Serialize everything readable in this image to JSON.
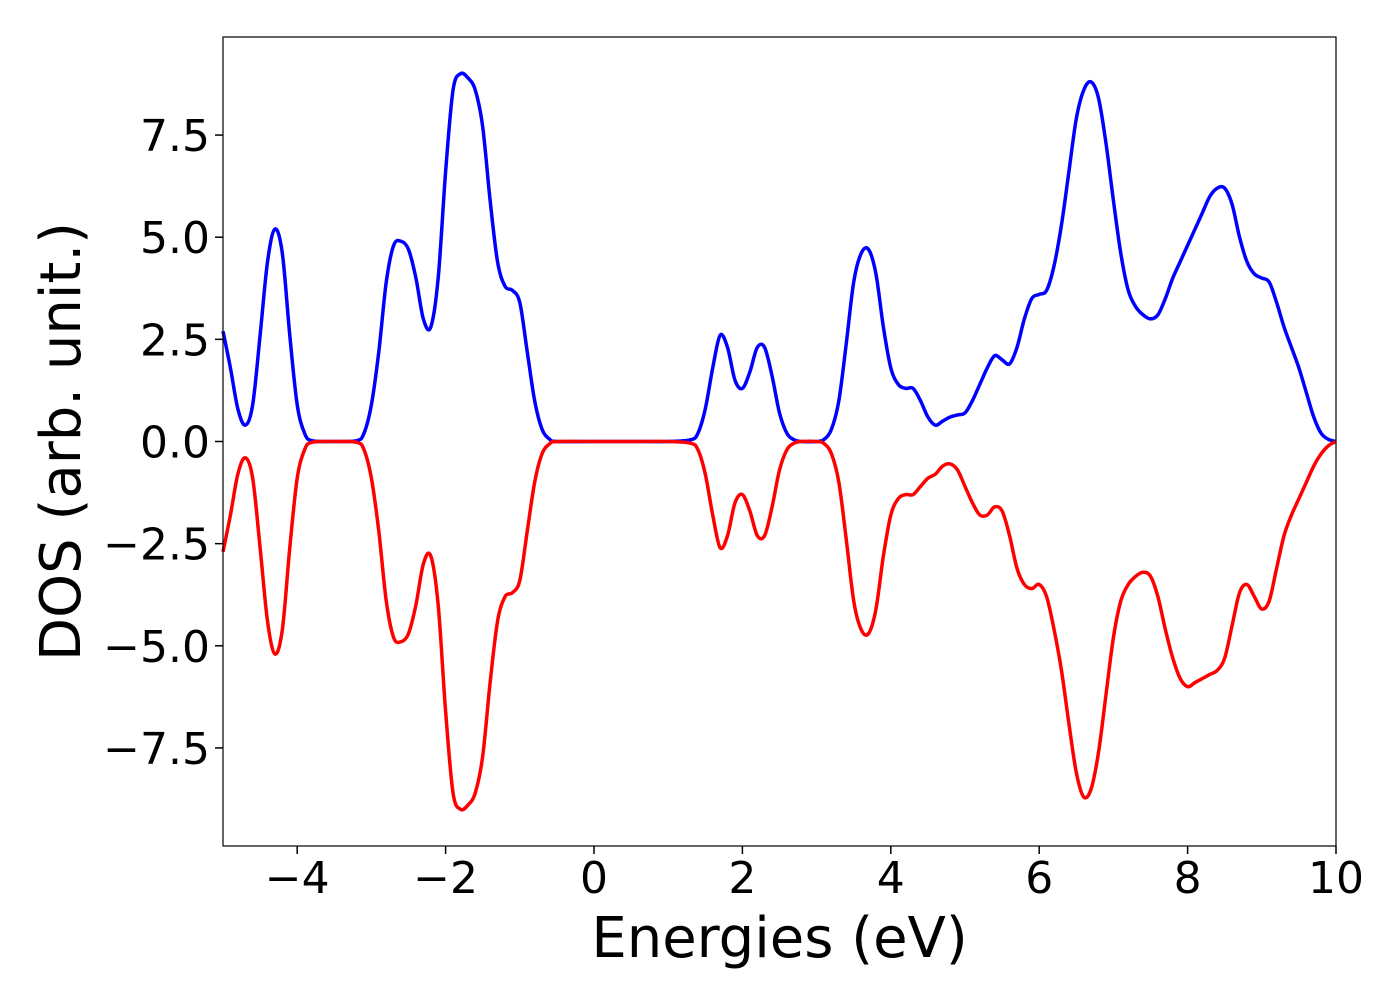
{
  "chart_data": {
    "type": "line",
    "title": "",
    "xlabel": "Energies (eV)",
    "ylabel": "DOS (arb. unit.)",
    "xlim": [
      -5,
      10
    ],
    "ylim": [
      -9.9,
      9.9
    ],
    "x_ticks": [
      -4,
      -2,
      0,
      2,
      4,
      6,
      8,
      10
    ],
    "x_tick_labels": [
      "−4",
      "−2",
      "0",
      "2",
      "4",
      "6",
      "8",
      "10"
    ],
    "y_ticks": [
      -7.5,
      -5.0,
      -2.5,
      0.0,
      2.5,
      5.0,
      7.5
    ],
    "y_tick_labels": [
      "−7.5",
      "−5.0",
      "−2.5",
      "0.0",
      "2.5",
      "5.0",
      "7.5"
    ],
    "grid": false,
    "legend": "none",
    "series": [
      {
        "color": "#0000ff",
        "points": [
          [
            -5.0,
            2.7
          ],
          [
            -4.9,
            1.8
          ],
          [
            -4.8,
            0.8
          ],
          [
            -4.7,
            0.4
          ],
          [
            -4.6,
            0.9
          ],
          [
            -4.5,
            2.6
          ],
          [
            -4.4,
            4.4
          ],
          [
            -4.3,
            5.2
          ],
          [
            -4.2,
            4.6
          ],
          [
            -4.1,
            2.6
          ],
          [
            -4.0,
            0.9
          ],
          [
            -3.9,
            0.2
          ],
          [
            -3.8,
            0.02
          ],
          [
            -3.5,
            0.0
          ],
          [
            -3.2,
            0.02
          ],
          [
            -3.1,
            0.2
          ],
          [
            -3.0,
            0.9
          ],
          [
            -2.9,
            2.2
          ],
          [
            -2.8,
            3.9
          ],
          [
            -2.7,
            4.8
          ],
          [
            -2.6,
            4.9
          ],
          [
            -2.5,
            4.7
          ],
          [
            -2.4,
            4.0
          ],
          [
            -2.3,
            3.0
          ],
          [
            -2.2,
            2.8
          ],
          [
            -2.1,
            4.0
          ],
          [
            -2.0,
            6.6
          ],
          [
            -1.9,
            8.6
          ],
          [
            -1.8,
            9.0
          ],
          [
            -1.7,
            8.9
          ],
          [
            -1.6,
            8.6
          ],
          [
            -1.5,
            7.7
          ],
          [
            -1.4,
            5.9
          ],
          [
            -1.3,
            4.4
          ],
          [
            -1.2,
            3.8
          ],
          [
            -1.1,
            3.7
          ],
          [
            -1.0,
            3.4
          ],
          [
            -0.9,
            2.2
          ],
          [
            -0.8,
            1.0
          ],
          [
            -0.7,
            0.3
          ],
          [
            -0.6,
            0.06
          ],
          [
            -0.5,
            0.0
          ],
          [
            0.0,
            0.0
          ],
          [
            0.5,
            0.0
          ],
          [
            1.0,
            0.0
          ],
          [
            1.3,
            0.04
          ],
          [
            1.4,
            0.2
          ],
          [
            1.5,
            0.8
          ],
          [
            1.6,
            1.8
          ],
          [
            1.7,
            2.6
          ],
          [
            1.8,
            2.3
          ],
          [
            1.9,
            1.5
          ],
          [
            2.0,
            1.3
          ],
          [
            2.1,
            1.7
          ],
          [
            2.2,
            2.3
          ],
          [
            2.3,
            2.3
          ],
          [
            2.4,
            1.6
          ],
          [
            2.5,
            0.7
          ],
          [
            2.6,
            0.2
          ],
          [
            2.7,
            0.04
          ],
          [
            2.8,
            0.0
          ],
          [
            3.0,
            0.0
          ],
          [
            3.1,
            0.05
          ],
          [
            3.2,
            0.3
          ],
          [
            3.3,
            1.0
          ],
          [
            3.4,
            2.4
          ],
          [
            3.5,
            3.9
          ],
          [
            3.6,
            4.6
          ],
          [
            3.7,
            4.7
          ],
          [
            3.8,
            4.1
          ],
          [
            3.9,
            2.8
          ],
          [
            4.0,
            1.8
          ],
          [
            4.1,
            1.4
          ],
          [
            4.2,
            1.3
          ],
          [
            4.3,
            1.3
          ],
          [
            4.4,
            1.0
          ],
          [
            4.5,
            0.6
          ],
          [
            4.6,
            0.4
          ],
          [
            4.7,
            0.5
          ],
          [
            4.8,
            0.6
          ],
          [
            4.9,
            0.65
          ],
          [
            5.0,
            0.7
          ],
          [
            5.1,
            1.0
          ],
          [
            5.2,
            1.4
          ],
          [
            5.3,
            1.8
          ],
          [
            5.4,
            2.1
          ],
          [
            5.5,
            2.0
          ],
          [
            5.6,
            1.9
          ],
          [
            5.7,
            2.3
          ],
          [
            5.8,
            3.0
          ],
          [
            5.9,
            3.5
          ],
          [
            6.0,
            3.6
          ],
          [
            6.1,
            3.7
          ],
          [
            6.2,
            4.3
          ],
          [
            6.3,
            5.3
          ],
          [
            6.4,
            6.6
          ],
          [
            6.5,
            7.9
          ],
          [
            6.6,
            8.6
          ],
          [
            6.7,
            8.8
          ],
          [
            6.8,
            8.4
          ],
          [
            6.9,
            7.3
          ],
          [
            7.0,
            5.9
          ],
          [
            7.1,
            4.6
          ],
          [
            7.2,
            3.7
          ],
          [
            7.3,
            3.3
          ],
          [
            7.4,
            3.1
          ],
          [
            7.5,
            3.0
          ],
          [
            7.6,
            3.1
          ],
          [
            7.7,
            3.5
          ],
          [
            7.8,
            4.0
          ],
          [
            7.9,
            4.4
          ],
          [
            8.0,
            4.8
          ],
          [
            8.1,
            5.2
          ],
          [
            8.2,
            5.6
          ],
          [
            8.3,
            6.0
          ],
          [
            8.4,
            6.2
          ],
          [
            8.5,
            6.2
          ],
          [
            8.6,
            5.8
          ],
          [
            8.7,
            5.0
          ],
          [
            8.8,
            4.4
          ],
          [
            8.9,
            4.1
          ],
          [
            9.0,
            4.0
          ],
          [
            9.1,
            3.9
          ],
          [
            9.2,
            3.4
          ],
          [
            9.3,
            2.8
          ],
          [
            9.4,
            2.3
          ],
          [
            9.5,
            1.8
          ],
          [
            9.6,
            1.2
          ],
          [
            9.7,
            0.6
          ],
          [
            9.8,
            0.2
          ],
          [
            9.9,
            0.05
          ],
          [
            10.0,
            0.0
          ]
        ]
      },
      {
        "color": "#ff0000",
        "points": [
          [
            -5.0,
            -2.7
          ],
          [
            -4.9,
            -1.8
          ],
          [
            -4.8,
            -0.8
          ],
          [
            -4.7,
            -0.4
          ],
          [
            -4.6,
            -0.9
          ],
          [
            -4.5,
            -2.6
          ],
          [
            -4.4,
            -4.4
          ],
          [
            -4.3,
            -5.2
          ],
          [
            -4.2,
            -4.6
          ],
          [
            -4.1,
            -2.6
          ],
          [
            -4.0,
            -0.9
          ],
          [
            -3.9,
            -0.2
          ],
          [
            -3.8,
            -0.02
          ],
          [
            -3.5,
            0.0
          ],
          [
            -3.2,
            -0.02
          ],
          [
            -3.1,
            -0.2
          ],
          [
            -3.0,
            -0.9
          ],
          [
            -2.9,
            -2.2
          ],
          [
            -2.8,
            -3.9
          ],
          [
            -2.7,
            -4.8
          ],
          [
            -2.6,
            -4.9
          ],
          [
            -2.5,
            -4.7
          ],
          [
            -2.4,
            -4.0
          ],
          [
            -2.3,
            -3.0
          ],
          [
            -2.2,
            -2.8
          ],
          [
            -2.1,
            -4.0
          ],
          [
            -2.0,
            -6.6
          ],
          [
            -1.9,
            -8.6
          ],
          [
            -1.8,
            -9.0
          ],
          [
            -1.7,
            -8.9
          ],
          [
            -1.6,
            -8.6
          ],
          [
            -1.5,
            -7.7
          ],
          [
            -1.4,
            -5.9
          ],
          [
            -1.3,
            -4.4
          ],
          [
            -1.2,
            -3.8
          ],
          [
            -1.1,
            -3.7
          ],
          [
            -1.0,
            -3.4
          ],
          [
            -0.9,
            -2.2
          ],
          [
            -0.8,
            -1.0
          ],
          [
            -0.7,
            -0.3
          ],
          [
            -0.6,
            -0.06
          ],
          [
            -0.5,
            0.0
          ],
          [
            0.0,
            0.0
          ],
          [
            0.5,
            0.0
          ],
          [
            1.0,
            0.0
          ],
          [
            1.3,
            -0.04
          ],
          [
            1.4,
            -0.2
          ],
          [
            1.5,
            -0.8
          ],
          [
            1.6,
            -1.8
          ],
          [
            1.7,
            -2.6
          ],
          [
            1.8,
            -2.3
          ],
          [
            1.9,
            -1.5
          ],
          [
            2.0,
            -1.3
          ],
          [
            2.1,
            -1.7
          ],
          [
            2.2,
            -2.3
          ],
          [
            2.3,
            -2.3
          ],
          [
            2.4,
            -1.6
          ],
          [
            2.5,
            -0.7
          ],
          [
            2.6,
            -0.2
          ],
          [
            2.7,
            -0.04
          ],
          [
            2.8,
            0.0
          ],
          [
            3.0,
            0.0
          ],
          [
            3.1,
            -0.05
          ],
          [
            3.2,
            -0.3
          ],
          [
            3.3,
            -1.0
          ],
          [
            3.4,
            -2.4
          ],
          [
            3.5,
            -3.9
          ],
          [
            3.6,
            -4.6
          ],
          [
            3.7,
            -4.7
          ],
          [
            3.8,
            -4.1
          ],
          [
            3.9,
            -2.8
          ],
          [
            4.0,
            -1.8
          ],
          [
            4.1,
            -1.4
          ],
          [
            4.2,
            -1.3
          ],
          [
            4.3,
            -1.3
          ],
          [
            4.4,
            -1.1
          ],
          [
            4.5,
            -0.9
          ],
          [
            4.6,
            -0.8
          ],
          [
            4.7,
            -0.6
          ],
          [
            4.8,
            -0.55
          ],
          [
            4.9,
            -0.7
          ],
          [
            5.0,
            -1.1
          ],
          [
            5.1,
            -1.5
          ],
          [
            5.2,
            -1.8
          ],
          [
            5.3,
            -1.8
          ],
          [
            5.4,
            -1.6
          ],
          [
            5.5,
            -1.7
          ],
          [
            5.6,
            -2.3
          ],
          [
            5.7,
            -3.1
          ],
          [
            5.8,
            -3.5
          ],
          [
            5.9,
            -3.6
          ],
          [
            6.0,
            -3.5
          ],
          [
            6.1,
            -3.8
          ],
          [
            6.2,
            -4.6
          ],
          [
            6.3,
            -5.6
          ],
          [
            6.4,
            -6.9
          ],
          [
            6.5,
            -8.1
          ],
          [
            6.6,
            -8.7
          ],
          [
            6.7,
            -8.5
          ],
          [
            6.8,
            -7.6
          ],
          [
            6.9,
            -6.2
          ],
          [
            7.0,
            -4.8
          ],
          [
            7.1,
            -3.9
          ],
          [
            7.2,
            -3.5
          ],
          [
            7.3,
            -3.3
          ],
          [
            7.4,
            -3.2
          ],
          [
            7.5,
            -3.3
          ],
          [
            7.6,
            -3.8
          ],
          [
            7.7,
            -4.6
          ],
          [
            7.8,
            -5.3
          ],
          [
            7.9,
            -5.8
          ],
          [
            8.0,
            -6.0
          ],
          [
            8.1,
            -5.9
          ],
          [
            8.2,
            -5.8
          ],
          [
            8.3,
            -5.7
          ],
          [
            8.4,
            -5.6
          ],
          [
            8.5,
            -5.3
          ],
          [
            8.6,
            -4.5
          ],
          [
            8.7,
            -3.7
          ],
          [
            8.8,
            -3.5
          ],
          [
            8.9,
            -3.8
          ],
          [
            9.0,
            -4.1
          ],
          [
            9.1,
            -3.9
          ],
          [
            9.2,
            -3.1
          ],
          [
            9.3,
            -2.3
          ],
          [
            9.4,
            -1.8
          ],
          [
            9.5,
            -1.4
          ],
          [
            9.6,
            -1.0
          ],
          [
            9.7,
            -0.6
          ],
          [
            9.8,
            -0.3
          ],
          [
            9.9,
            -0.1
          ],
          [
            10.0,
            0.0
          ]
        ]
      }
    ]
  }
}
